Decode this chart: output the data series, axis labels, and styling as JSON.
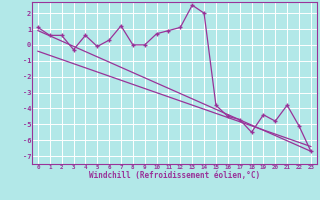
{
  "title": "",
  "xlabel": "Windchill (Refroidissement éolien,°C)",
  "ylabel": "",
  "background_color": "#b2e8e8",
  "grid_color": "#ffffff",
  "line_color": "#993399",
  "xlim": [
    -0.5,
    23.5
  ],
  "ylim": [
    -7.5,
    2.7
  ],
  "xticks": [
    0,
    1,
    2,
    3,
    4,
    5,
    6,
    7,
    8,
    9,
    10,
    11,
    12,
    13,
    14,
    15,
    16,
    17,
    18,
    19,
    20,
    21,
    22,
    23
  ],
  "yticks": [
    -7,
    -6,
    -5,
    -4,
    -3,
    -2,
    -1,
    0,
    1,
    2
  ],
  "data_line": [
    [
      0,
      1.1
    ],
    [
      1,
      0.6
    ],
    [
      2,
      0.6
    ],
    [
      3,
      -0.3
    ],
    [
      4,
      0.6
    ],
    [
      5,
      -0.1
    ],
    [
      6,
      0.3
    ],
    [
      7,
      1.2
    ],
    [
      8,
      0.0
    ],
    [
      9,
      0.0
    ],
    [
      10,
      0.7
    ],
    [
      11,
      0.9
    ],
    [
      12,
      1.1
    ],
    [
      13,
      2.5
    ],
    [
      14,
      2.0
    ],
    [
      15,
      -3.8
    ],
    [
      16,
      -4.5
    ],
    [
      17,
      -4.7
    ],
    [
      18,
      -5.5
    ],
    [
      19,
      -4.4
    ],
    [
      20,
      -4.8
    ],
    [
      21,
      -3.8
    ],
    [
      22,
      -5.1
    ],
    [
      23,
      -6.7
    ]
  ],
  "trend_line": [
    [
      0,
      0.9
    ],
    [
      23,
      -6.7
    ]
  ],
  "trend_line2": [
    [
      0,
      -0.4
    ],
    [
      23,
      -6.4
    ]
  ]
}
